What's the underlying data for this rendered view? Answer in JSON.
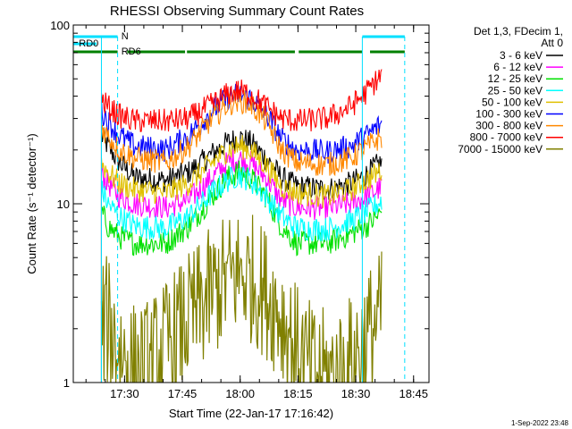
{
  "chart_data": {
    "type": "line",
    "title": "RHESSI Observing Summary Count Rates",
    "xlabel": "Start Time (22-Jan-17 17:16:42)",
    "ylabel": "Count Rate (s⁻¹ detector⁻¹)",
    "y_scale": "log",
    "ylim": [
      1,
      100
    ],
    "x_unit": "minutes after 17:16:42",
    "xlim": [
      0,
      92.3
    ],
    "x_ticks": [
      {
        "label": "17:30",
        "x": 13.3
      },
      {
        "label": "17:45",
        "x": 28.3
      },
      {
        "label": "18:00",
        "x": 43.3
      },
      {
        "label": "18:15",
        "x": 58.3
      },
      {
        "label": "18:30",
        "x": 73.3
      },
      {
        "label": "18:45",
        "x": 88.3
      }
    ],
    "y_ticks": [
      {
        "label": "100",
        "y": 100
      },
      {
        "label": "10",
        "y": 10
      },
      {
        "label": "1",
        "y": 1
      }
    ],
    "legend": {
      "placement": "right",
      "header_lines": [
        "Det 1,3, FDecim 1,",
        "Att 0"
      ]
    },
    "flags": [
      {
        "label": "N",
        "color": "#00e0ff",
        "segments": [
          [
            0,
            11.5
          ],
          [
            75,
            86
          ]
        ]
      },
      {
        "label": "RD0",
        "color": "#00e0ff",
        "segments": [
          [
            0,
            6
          ]
        ]
      },
      {
        "label": "RD6",
        "color": "#008000",
        "segments": [
          [
            0,
            11.5
          ],
          [
            14,
            29
          ],
          [
            29.5,
            57.5
          ],
          [
            58.5,
            75
          ],
          [
            77,
            86
          ]
        ]
      }
    ],
    "eclipse_lines": [
      7.3,
      11.5,
      75,
      86
    ],
    "time_range": [
      7.3,
      80
    ],
    "series": [
      {
        "name": "3 - 6 keV",
        "color": "#000000",
        "profile": [
          [
            7.3,
            24
          ],
          [
            9,
            21
          ],
          [
            12,
            17
          ],
          [
            16,
            14
          ],
          [
            24,
            13.5
          ],
          [
            30,
            15
          ],
          [
            36,
            19
          ],
          [
            40,
            22
          ],
          [
            43,
            23.5
          ],
          [
            46,
            22
          ],
          [
            50,
            18
          ],
          [
            54,
            14
          ],
          [
            58,
            12.5
          ],
          [
            66,
            12
          ],
          [
            72,
            13
          ],
          [
            76,
            14.5
          ],
          [
            79,
            16.5
          ],
          [
            80,
            17
          ]
        ]
      },
      {
        "name": "6 - 12 keV",
        "color": "#ff00ff",
        "profile": [
          [
            7.3,
            15
          ],
          [
            9,
            13
          ],
          [
            12,
            11
          ],
          [
            16,
            10
          ],
          [
            24,
            9.5
          ],
          [
            30,
            10.5
          ],
          [
            36,
            14
          ],
          [
            40,
            17
          ],
          [
            43,
            18
          ],
          [
            46,
            17
          ],
          [
            50,
            14
          ],
          [
            54,
            10.5
          ],
          [
            58,
            9.5
          ],
          [
            66,
            9.5
          ],
          [
            72,
            10
          ],
          [
            76,
            11
          ],
          [
            79,
            12
          ],
          [
            80,
            12.5
          ]
        ]
      },
      {
        "name": "12 - 25 keV",
        "color": "#00e000",
        "profile": [
          [
            7.3,
            9
          ],
          [
            9,
            7.5
          ],
          [
            12,
            6.5
          ],
          [
            16,
            6
          ],
          [
            24,
            6
          ],
          [
            30,
            7.5
          ],
          [
            36,
            11
          ],
          [
            40,
            14
          ],
          [
            43,
            15
          ],
          [
            46,
            14
          ],
          [
            50,
            11
          ],
          [
            54,
            7.5
          ],
          [
            58,
            6
          ],
          [
            66,
            6
          ],
          [
            72,
            6.8
          ],
          [
            76,
            7.5
          ],
          [
            79,
            8.5
          ],
          [
            80,
            9
          ]
        ]
      },
      {
        "name": "25 - 50 keV",
        "color": "#00ffff",
        "profile": [
          [
            7.3,
            12
          ],
          [
            9,
            10
          ],
          [
            12,
            8.5
          ],
          [
            16,
            7.5
          ],
          [
            24,
            7.3
          ],
          [
            30,
            8.5
          ],
          [
            36,
            11.5
          ],
          [
            40,
            13.5
          ],
          [
            43,
            14.5
          ],
          [
            46,
            13.5
          ],
          [
            50,
            11
          ],
          [
            54,
            8.5
          ],
          [
            58,
            7.3
          ],
          [
            66,
            7.2
          ],
          [
            72,
            8
          ],
          [
            76,
            9
          ],
          [
            79,
            10
          ],
          [
            80,
            10.5
          ]
        ]
      },
      {
        "name": "50 - 100 keV",
        "color": "#e0c000",
        "profile": [
          [
            7.3,
            17
          ],
          [
            9,
            15
          ],
          [
            12,
            13
          ],
          [
            16,
            12
          ],
          [
            24,
            11.5
          ],
          [
            30,
            13
          ],
          [
            36,
            17
          ],
          [
            40,
            20
          ],
          [
            43,
            21
          ],
          [
            46,
            20
          ],
          [
            50,
            16.5
          ],
          [
            54,
            12.5
          ],
          [
            58,
            11.5
          ],
          [
            66,
            11
          ],
          [
            72,
            12
          ],
          [
            76,
            13.5
          ],
          [
            79,
            15
          ],
          [
            80,
            15.5
          ]
        ]
      },
      {
        "name": "100 - 300 keV",
        "color": "#0000ff",
        "profile": [
          [
            7.3,
            33
          ],
          [
            9,
            29
          ],
          [
            12,
            24
          ],
          [
            16,
            21
          ],
          [
            24,
            20
          ],
          [
            30,
            24
          ],
          [
            36,
            33
          ],
          [
            40,
            39
          ],
          [
            43,
            41
          ],
          [
            46,
            39
          ],
          [
            50,
            32
          ],
          [
            54,
            23
          ],
          [
            58,
            20
          ],
          [
            66,
            19.5
          ],
          [
            72,
            21
          ],
          [
            76,
            24
          ],
          [
            79,
            27
          ],
          [
            80,
            28
          ]
        ]
      },
      {
        "name": "300 - 800 keV",
        "color": "#ff8800",
        "profile": [
          [
            7.3,
            27
          ],
          [
            9,
            24
          ],
          [
            12,
            20
          ],
          [
            16,
            18
          ],
          [
            24,
            17
          ],
          [
            30,
            21
          ],
          [
            36,
            30
          ],
          [
            40,
            36
          ],
          [
            43,
            38
          ],
          [
            46,
            36
          ],
          [
            50,
            29
          ],
          [
            54,
            20
          ],
          [
            58,
            17
          ],
          [
            66,
            16.5
          ],
          [
            72,
            18
          ],
          [
            76,
            20.5
          ],
          [
            79,
            23
          ],
          [
            80,
            23.5
          ]
        ]
      },
      {
        "name": "800 - 7000 keV",
        "color": "#ff0000",
        "profile": [
          [
            7.3,
            38
          ],
          [
            9,
            35
          ],
          [
            12,
            31
          ],
          [
            16,
            29
          ],
          [
            24,
            29
          ],
          [
            30,
            30
          ],
          [
            36,
            36
          ],
          [
            40,
            41
          ],
          [
            43,
            43
          ],
          [
            46,
            41
          ],
          [
            50,
            35
          ],
          [
            54,
            30
          ],
          [
            58,
            29
          ],
          [
            66,
            30
          ],
          [
            72,
            35
          ],
          [
            76,
            42
          ],
          [
            79,
            50
          ],
          [
            80,
            52
          ]
        ]
      },
      {
        "name": "7000 - 15000 keV",
        "color": "#808000",
        "profile": [
          [
            7.3,
            2.5
          ],
          [
            9,
            2.6
          ],
          [
            12,
            1.8
          ],
          [
            16,
            1.4
          ],
          [
            20,
            1.5
          ],
          [
            24,
            1.9
          ],
          [
            28,
            2.4
          ],
          [
            32,
            3
          ],
          [
            36,
            3.8
          ],
          [
            40,
            4.5
          ],
          [
            43,
            4.9
          ],
          [
            46,
            4.6
          ],
          [
            50,
            3.8
          ],
          [
            54,
            2.8
          ],
          [
            58,
            1.8
          ],
          [
            62,
            1.4
          ],
          [
            66,
            1.3
          ],
          [
            70,
            1.4
          ],
          [
            74,
            1.8
          ],
          [
            78,
            2.5
          ],
          [
            80,
            2.8
          ]
        ]
      }
    ]
  },
  "footer": {
    "timestamp": "1-Sep-2022 23:48"
  }
}
